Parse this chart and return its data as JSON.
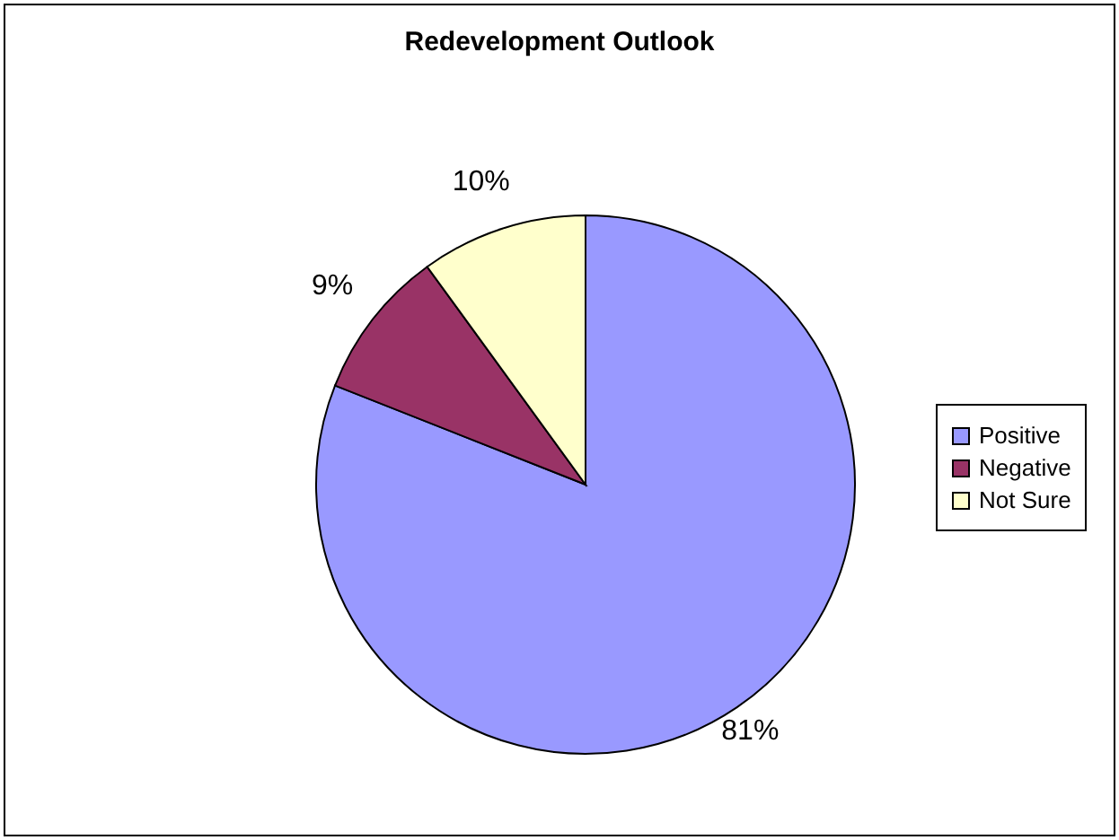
{
  "chart_data": {
    "type": "pie",
    "title": "Redevelopment Outlook",
    "categories": [
      "Positive",
      "Negative",
      "Not Sure"
    ],
    "values": [
      81,
      9,
      10
    ],
    "colors": [
      "#9999ff",
      "#993366",
      "#ffffcc"
    ],
    "value_labels": [
      "81%",
      "9%",
      "10%"
    ],
    "legend": "right"
  }
}
